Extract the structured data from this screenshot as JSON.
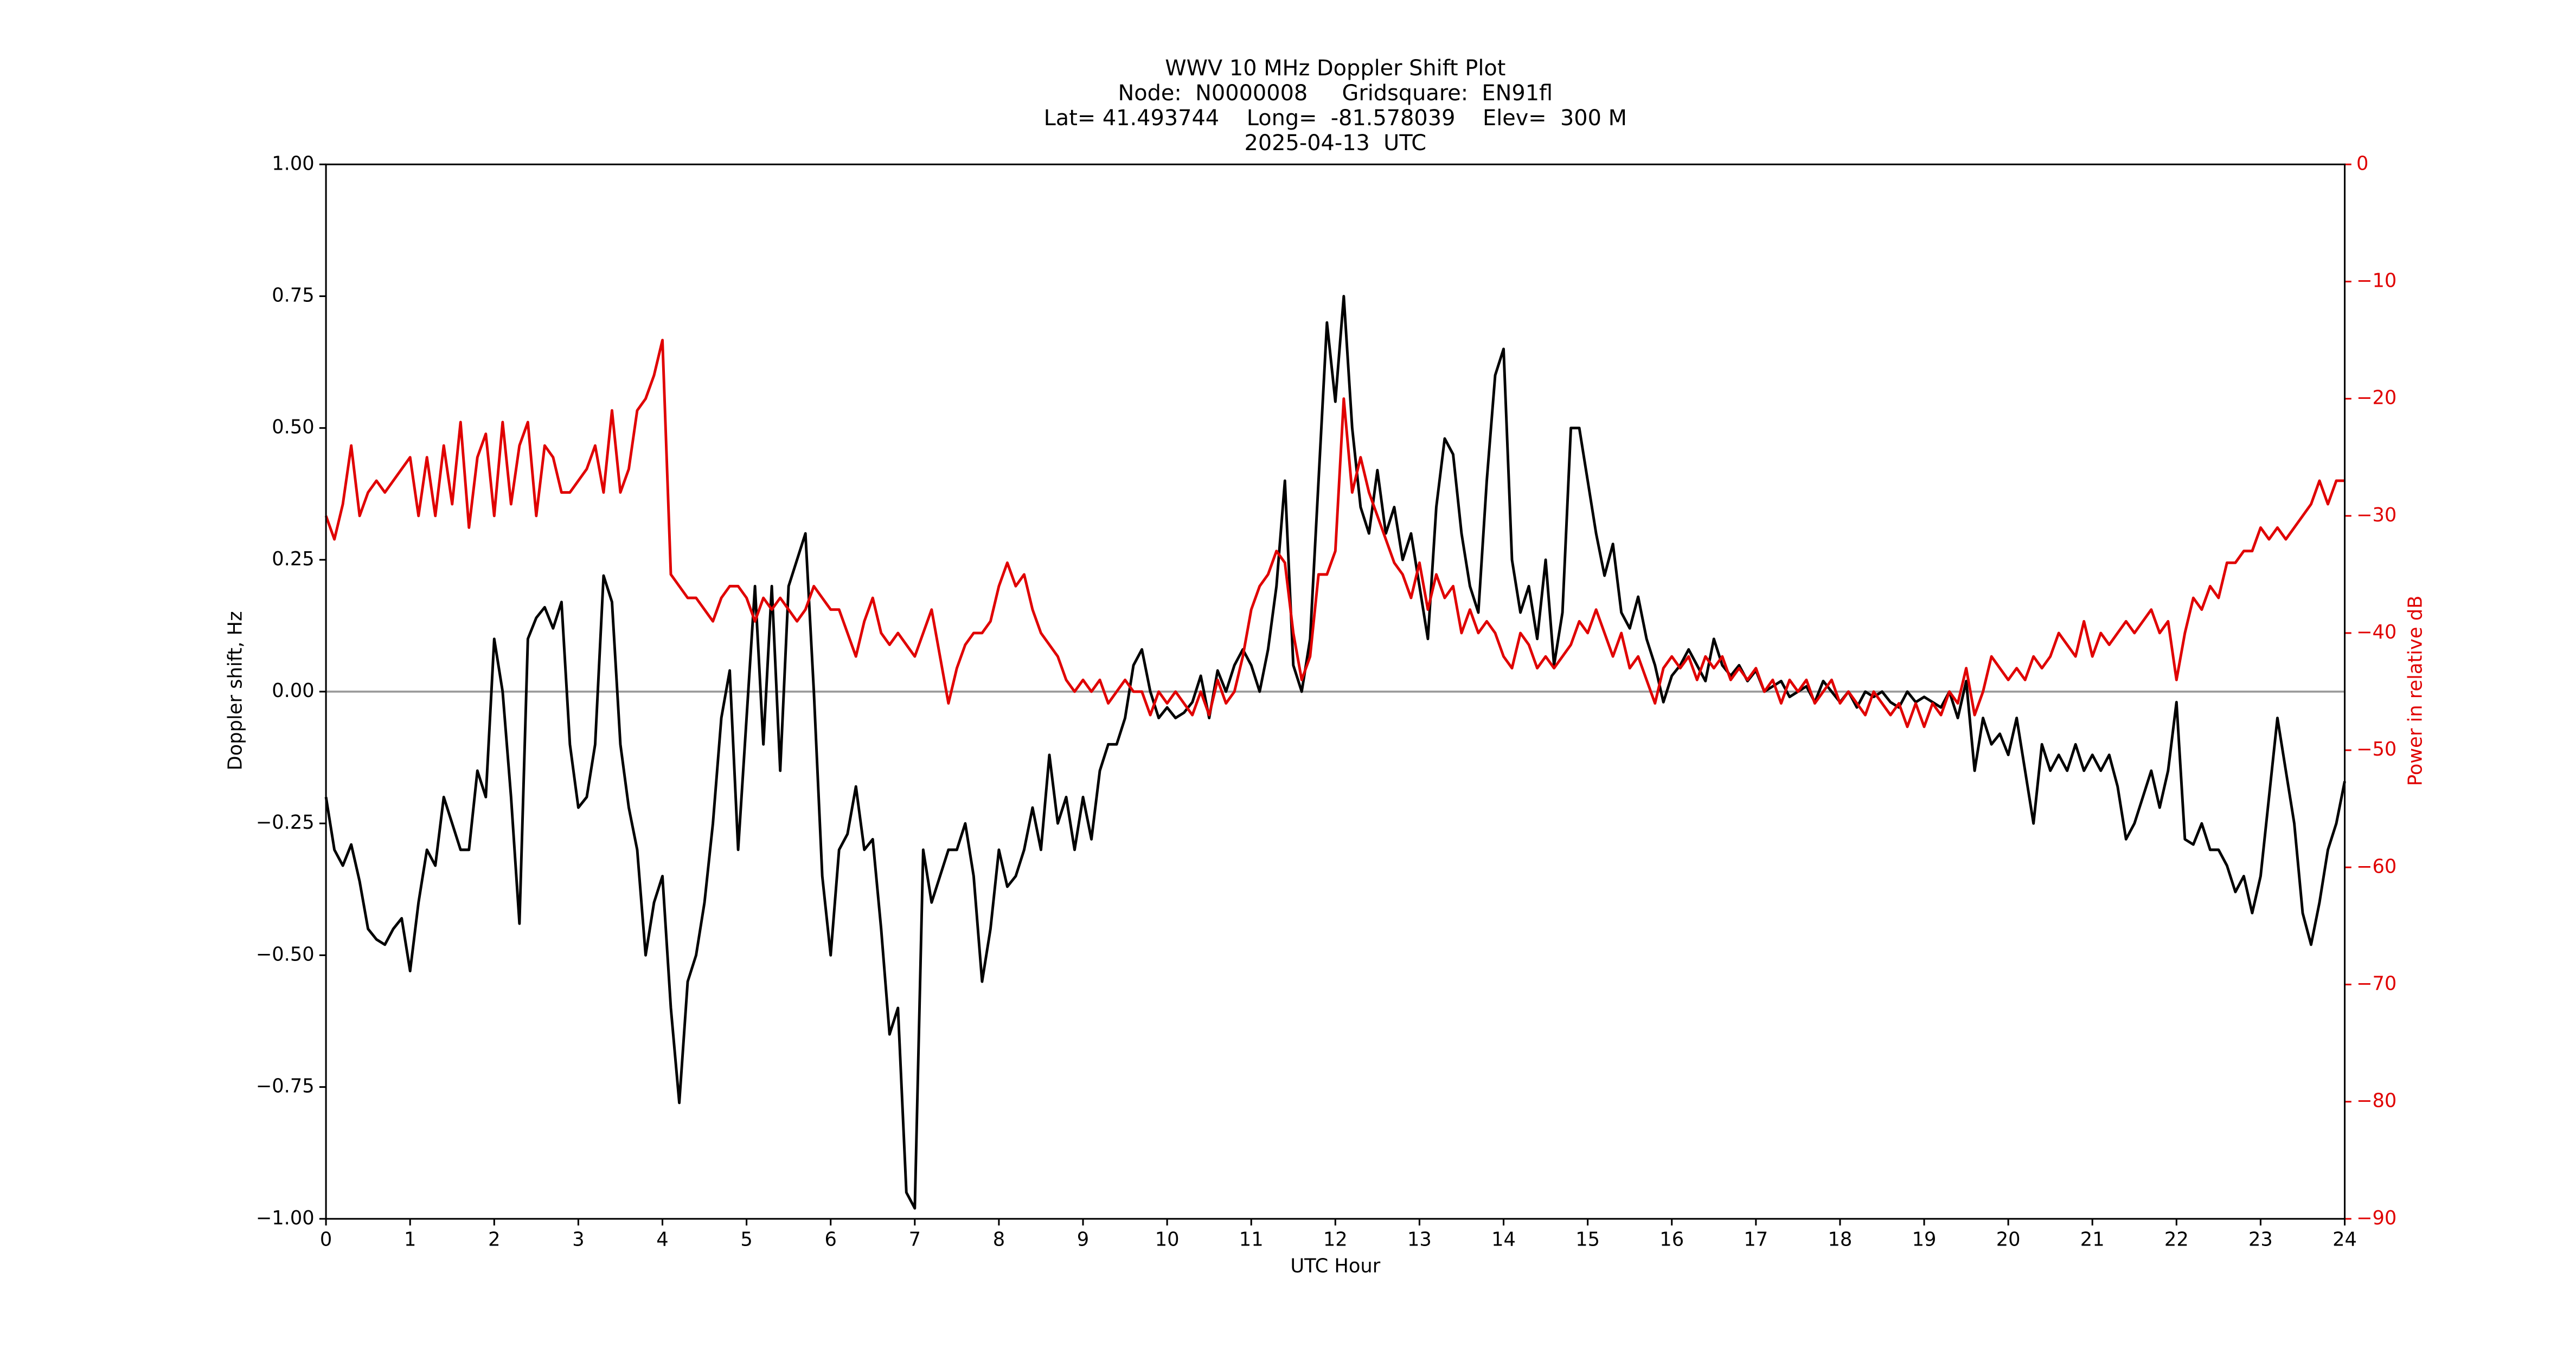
{
  "chart_data": {
    "type": "line",
    "title": [
      "WWV 10 MHz Doppler Shift Plot",
      "Node:  N0000008     Gridsquare:  EN91fl",
      "Lat= 41.493744    Long=  -81.578039    Elev=  300 M",
      "2025-04-13  UTC"
    ],
    "x_label": "UTC Hour",
    "y_label": "Doppler shift, Hz",
    "y2_label": "Power in relative dB",
    "xlim": [
      0,
      24
    ],
    "xticks": [
      0,
      1,
      2,
      3,
      4,
      5,
      6,
      7,
      8,
      9,
      10,
      11,
      12,
      13,
      14,
      15,
      16,
      17,
      18,
      19,
      20,
      21,
      22,
      23,
      24
    ],
    "ylim": [
      -1,
      1
    ],
    "yticks": [
      {
        "value": -1,
        "label": "−1.00"
      },
      {
        "value": -0.75,
        "label": "−0.75"
      },
      {
        "value": -0.5,
        "label": "−0.50"
      },
      {
        "value": -0.25,
        "label": "−0.25"
      },
      {
        "value": 0,
        "label": "0.00"
      },
      {
        "value": 0.25,
        "label": "0.25"
      },
      {
        "value": 0.5,
        "label": "0.50"
      },
      {
        "value": 0.75,
        "label": "0.75"
      },
      {
        "value": 1,
        "label": "1.00"
      }
    ],
    "y2lim": [
      -90,
      0
    ],
    "y2ticks": [
      {
        "value": -90,
        "label": "−90"
      },
      {
        "value": -80,
        "label": "−80"
      },
      {
        "value": -70,
        "label": "−70"
      },
      {
        "value": -60,
        "label": "−60"
      },
      {
        "value": -50,
        "label": "−50"
      },
      {
        "value": -40,
        "label": "−40"
      },
      {
        "value": -30,
        "label": "−30"
      },
      {
        "value": -20,
        "label": "−20"
      },
      {
        "value": -10,
        "label": "−10"
      },
      0
    ],
    "y2_color": "#e00000",
    "hline": 0,
    "hline_color": "#999999",
    "x": [
      0,
      0.1,
      0.2,
      0.3,
      0.4,
      0.5,
      0.6,
      0.7,
      0.8,
      0.9,
      1,
      1.1,
      1.2,
      1.3,
      1.4,
      1.5,
      1.6,
      1.7,
      1.8,
      1.9,
      2,
      2.1,
      2.2,
      2.3,
      2.4,
      2.5,
      2.6,
      2.7,
      2.8,
      2.9,
      3,
      3.1,
      3.2,
      3.3,
      3.4,
      3.5,
      3.6,
      3.7,
      3.8,
      3.9,
      4,
      4.1,
      4.2,
      4.3,
      4.4,
      4.5,
      4.6,
      4.7,
      4.8,
      4.9,
      5,
      5.1,
      5.2,
      5.3,
      5.4,
      5.5,
      5.6,
      5.7,
      5.8,
      5.9,
      6,
      6.1,
      6.2,
      6.3,
      6.4,
      6.5,
      6.6,
      6.7,
      6.8,
      6.9,
      7,
      7.1,
      7.2,
      7.3,
      7.4,
      7.5,
      7.6,
      7.7,
      7.8,
      7.9,
      8,
      8.1,
      8.2,
      8.3,
      8.4,
      8.5,
      8.6,
      8.7,
      8.8,
      8.9,
      9,
      9.1,
      9.2,
      9.3,
      9.4,
      9.5,
      9.6,
      9.7,
      9.8,
      9.9,
      10,
      10.1,
      10.2,
      10.3,
      10.4,
      10.5,
      10.6,
      10.7,
      10.8,
      10.9,
      11,
      11.1,
      11.2,
      11.3,
      11.4,
      11.5,
      11.6,
      11.7,
      11.8,
      11.9,
      12,
      12.1,
      12.2,
      12.3,
      12.4,
      12.5,
      12.6,
      12.7,
      12.8,
      12.9,
      13,
      13.1,
      13.2,
      13.3,
      13.4,
      13.5,
      13.6,
      13.7,
      13.8,
      13.9,
      14,
      14.1,
      14.2,
      14.3,
      14.4,
      14.5,
      14.6,
      14.7,
      14.8,
      14.9,
      15,
      15.1,
      15.2,
      15.3,
      15.4,
      15.5,
      15.6,
      15.7,
      15.8,
      15.9,
      16,
      16.1,
      16.2,
      16.3,
      16.4,
      16.5,
      16.6,
      16.7,
      16.8,
      16.9,
      17,
      17.1,
      17.2,
      17.3,
      17.4,
      17.5,
      17.6,
      17.7,
      17.8,
      17.9,
      18,
      18.1,
      18.2,
      18.3,
      18.4,
      18.5,
      18.6,
      18.7,
      18.8,
      18.9,
      19,
      19.1,
      19.2,
      19.3,
      19.4,
      19.5,
      19.6,
      19.7,
      19.8,
      19.9,
      20,
      20.1,
      20.2,
      20.3,
      20.4,
      20.5,
      20.6,
      20.7,
      20.8,
      20.9,
      21,
      21.1,
      21.2,
      21.3,
      21.4,
      21.5,
      21.6,
      21.7,
      21.8,
      21.9,
      22,
      22.1,
      22.2,
      22.3,
      22.4,
      22.5,
      22.6,
      22.7,
      22.8,
      22.9,
      23,
      23.1,
      23.2,
      23.3,
      23.4,
      23.5,
      23.6,
      23.7,
      23.8,
      23.9,
      24
    ],
    "series": [
      {
        "color": "#000000",
        "values": [
          -0.2,
          -0.3,
          -0.33,
          -0.29,
          -0.36,
          -0.45,
          -0.47,
          -0.48,
          -0.45,
          -0.43,
          -0.53,
          -0.4,
          -0.3,
          -0.33,
          -0.2,
          -0.25,
          -0.3,
          -0.3,
          -0.15,
          -0.2,
          0.1,
          0,
          -0.2,
          -0.44,
          0.1,
          0.14,
          0.16,
          0.12,
          0.17,
          -0.1,
          -0.22,
          -0.2,
          -0.1,
          0.22,
          0.17,
          -0.1,
          -0.22,
          -0.3,
          -0.5,
          -0.4,
          -0.35,
          -0.6,
          -0.78,
          -0.55,
          -0.5,
          -0.4,
          -0.25,
          -0.05,
          0.04,
          -0.3,
          -0.05,
          0.2,
          -0.1,
          0.2,
          -0.15,
          0.2,
          0.25,
          0.3,
          0,
          -0.35,
          -0.5,
          -0.3,
          -0.27,
          -0.18,
          -0.3,
          -0.28,
          -0.45,
          -0.65,
          -0.6,
          -0.95,
          -0.98,
          -0.3,
          -0.4,
          -0.35,
          -0.3,
          -0.3,
          -0.25,
          -0.35,
          -0.55,
          -0.45,
          -0.3,
          -0.37,
          -0.35,
          -0.3,
          -0.22,
          -0.3,
          -0.12,
          -0.25,
          -0.2,
          -0.3,
          -0.2,
          -0.28,
          -0.15,
          -0.1,
          -0.1,
          -0.05,
          0.05,
          0.08,
          0,
          -0.05,
          -0.03,
          -0.05,
          -0.04,
          -0.02,
          0.03,
          -0.05,
          0.04,
          0,
          0.05,
          0.08,
          0.05,
          0,
          0.08,
          0.2,
          0.4,
          0.05,
          0,
          0.1,
          0.4,
          0.7,
          0.55,
          0.75,
          0.5,
          0.35,
          0.3,
          0.42,
          0.3,
          0.35,
          0.25,
          0.3,
          0.2,
          0.1,
          0.35,
          0.48,
          0.45,
          0.3,
          0.2,
          0.15,
          0.4,
          0.6,
          0.65,
          0.25,
          0.15,
          0.2,
          0.1,
          0.25,
          0.05,
          0.15,
          0.5,
          0.5,
          0.4,
          0.3,
          0.22,
          0.28,
          0.15,
          0.12,
          0.18,
          0.1,
          0.05,
          -0.02,
          0.03,
          0.05,
          0.08,
          0.05,
          0.02,
          0.1,
          0.05,
          0.03,
          0.05,
          0.02,
          0.04,
          0,
          0.01,
          0.02,
          -0.01,
          0,
          0.01,
          -0.02,
          0.02,
          0,
          -0.02,
          0,
          -0.03,
          0,
          -0.01,
          0,
          -0.02,
          -0.03,
          0,
          -0.02,
          -0.01,
          -0.02,
          -0.03,
          0,
          -0.05,
          0.02,
          -0.15,
          -0.05,
          -0.1,
          -0.08,
          -0.12,
          -0.05,
          -0.15,
          -0.25,
          -0.1,
          -0.15,
          -0.12,
          -0.15,
          -0.1,
          -0.15,
          -0.12,
          -0.15,
          -0.12,
          -0.18,
          -0.28,
          -0.25,
          -0.2,
          -0.15,
          -0.22,
          -0.15,
          -0.02,
          -0.28,
          -0.29,
          -0.25,
          -0.3,
          -0.3,
          -0.33,
          -0.38,
          -0.35,
          -0.42,
          -0.35,
          -0.2,
          -0.05,
          -0.15,
          -0.25,
          -0.42,
          -0.48,
          -0.4,
          -0.3,
          -0.25,
          -0.17
        ]
      },
      {
        "color": "#e00000",
        "axis": "y2",
        "values": [
          -30,
          -32,
          -29,
          -24,
          -30,
          -28,
          -27,
          -28,
          -27,
          -26,
          -25,
          -30,
          -25,
          -30,
          -24,
          -29,
          -22,
          -31,
          -25,
          -23,
          -30,
          -22,
          -29,
          -24,
          -22,
          -30,
          -24,
          -25,
          -28,
          -28,
          -27,
          -26,
          -24,
          -28,
          -21,
          -28,
          -26,
          -21,
          -20,
          -18,
          -15,
          -35,
          -36,
          -37,
          -37,
          -38,
          -39,
          -37,
          -36,
          -36,
          -37,
          -39,
          -37,
          -38,
          -37,
          -38,
          -39,
          -38,
          -36,
          -37,
          -38,
          -38,
          -40,
          -42,
          -39,
          -37,
          -40,
          -41,
          -40,
          -41,
          -42,
          -40,
          -38,
          -42,
          -46,
          -43,
          -41,
          -40,
          -40,
          -39,
          -36,
          -34,
          -36,
          -35,
          -38,
          -40,
          -41,
          -42,
          -44,
          -45,
          -44,
          -45,
          -44,
          -46,
          -45,
          -44,
          -45,
          -45,
          -47,
          -45,
          -46,
          -45,
          -46,
          -47,
          -45,
          -47,
          -44,
          -46,
          -45,
          -42,
          -38,
          -36,
          -35,
          -33,
          -34,
          -40,
          -44,
          -42,
          -35,
          -35,
          -33,
          -20,
          -28,
          -25,
          -28,
          -30,
          -32,
          -34,
          -35,
          -37,
          -34,
          -38,
          -35,
          -37,
          -36,
          -40,
          -38,
          -40,
          -39,
          -40,
          -42,
          -43,
          -40,
          -41,
          -43,
          -42,
          -43,
          -42,
          -41,
          -39,
          -40,
          -38,
          -40,
          -42,
          -40,
          -43,
          -42,
          -44,
          -46,
          -43,
          -42,
          -43,
          -42,
          -44,
          -42,
          -43,
          -42,
          -44,
          -43,
          -44,
          -43,
          -45,
          -44,
          -46,
          -44,
          -45,
          -44,
          -46,
          -45,
          -44,
          -46,
          -45,
          -46,
          -47,
          -45,
          -46,
          -47,
          -46,
          -48,
          -46,
          -48,
          -46,
          -47,
          -45,
          -46,
          -43,
          -47,
          -45,
          -42,
          -43,
          -44,
          -43,
          -44,
          -42,
          -43,
          -42,
          -40,
          -41,
          -42,
          -39,
          -42,
          -40,
          -41,
          -40,
          -39,
          -40,
          -39,
          -38,
          -40,
          -39,
          -44,
          -40,
          -37,
          -38,
          -36,
          -37,
          -34,
          -34,
          -33,
          -33,
          -31,
          -32,
          -31,
          -32,
          -31,
          -30,
          -29,
          -27,
          -29,
          -27,
          -27
        ]
      }
    ]
  }
}
